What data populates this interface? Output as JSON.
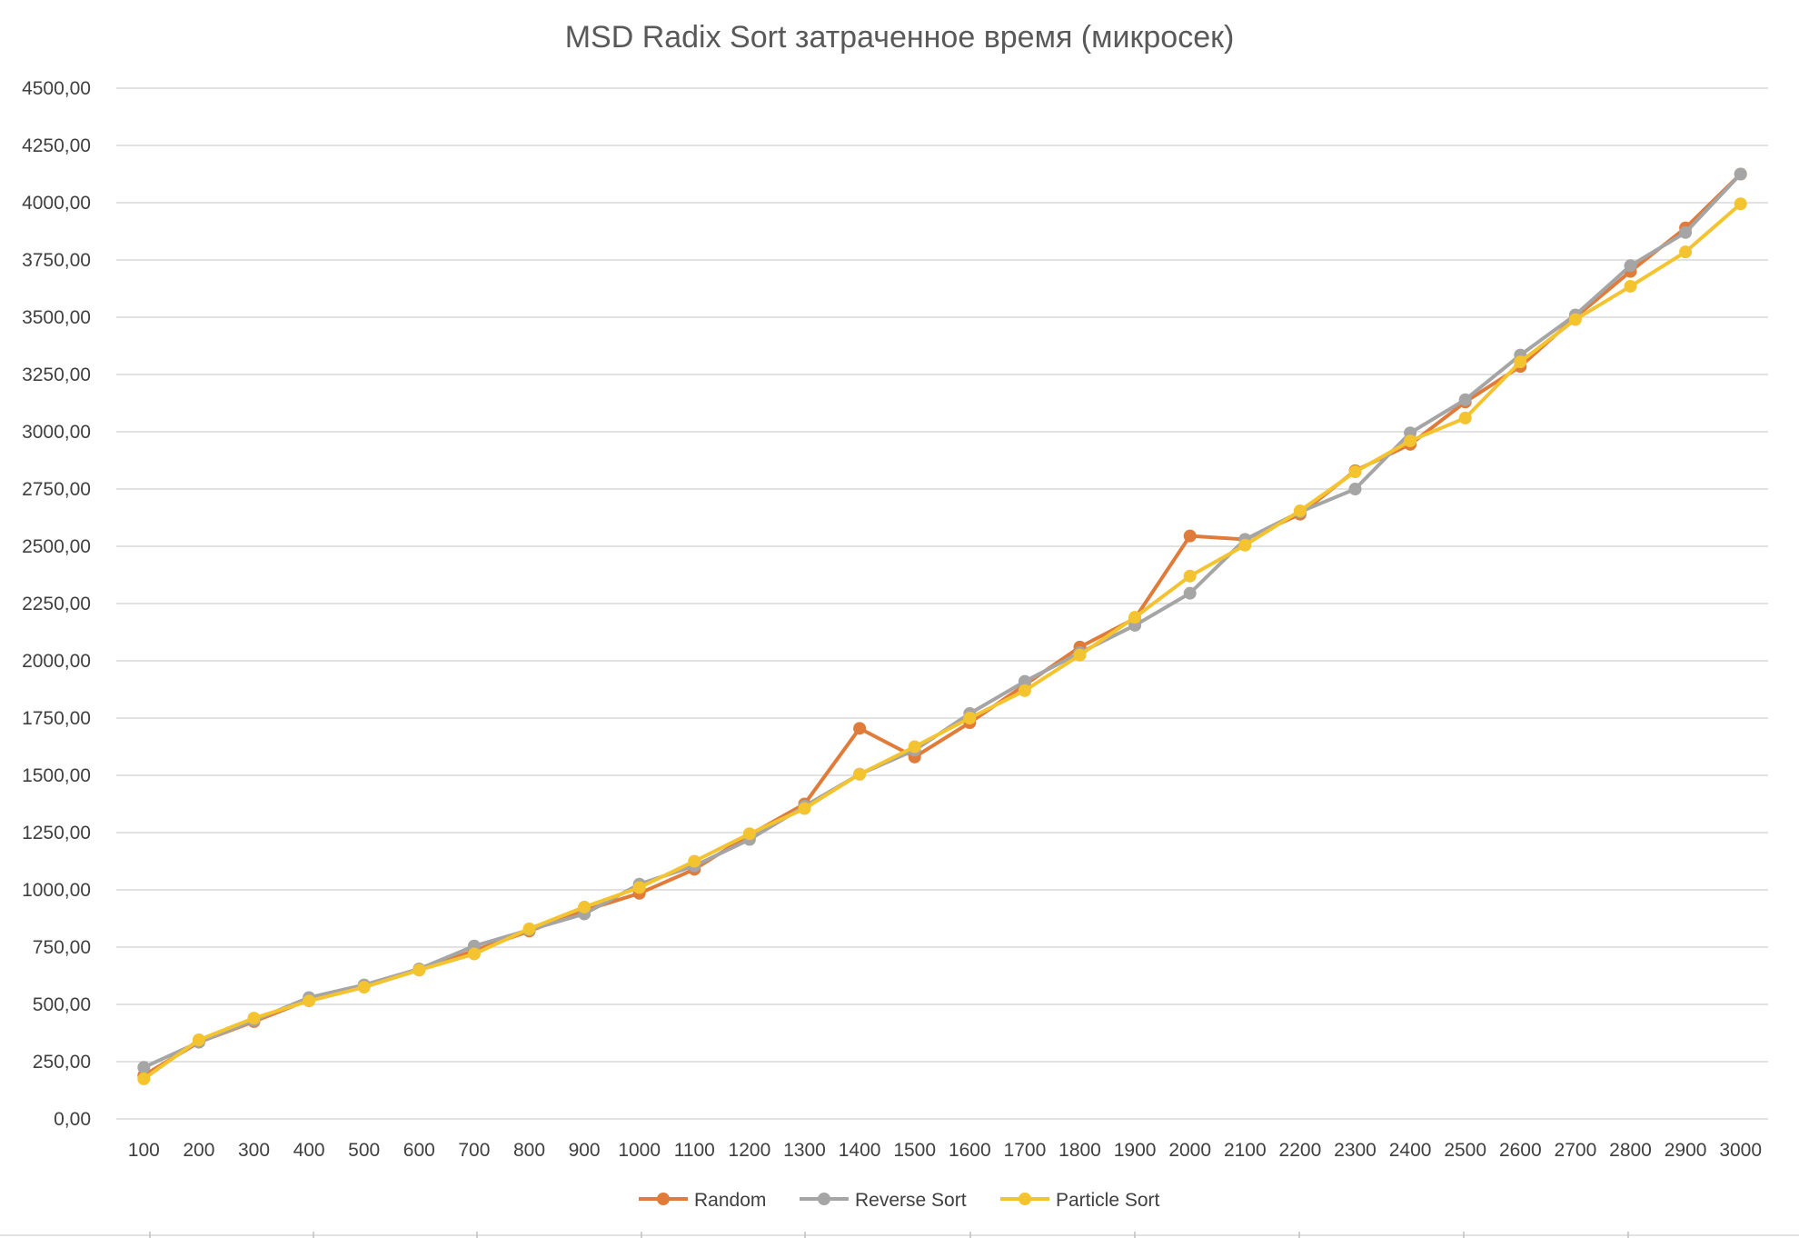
{
  "chart_data": {
    "type": "line",
    "title": "MSD Radix Sort затраченное время (микросек)",
    "xlabel": "",
    "ylabel": "",
    "categories": [
      "100",
      "200",
      "300",
      "400",
      "500",
      "600",
      "700",
      "800",
      "900",
      "1000",
      "1100",
      "1200",
      "1300",
      "1400",
      "1500",
      "1600",
      "1700",
      "1800",
      "1900",
      "2000",
      "2100",
      "2200",
      "2300",
      "2400",
      "2500",
      "2600",
      "2700",
      "2800",
      "2900",
      "3000"
    ],
    "y_ticks": [
      "0,00",
      "250,00",
      "500,00",
      "750,00",
      "1000,00",
      "1250,00",
      "1500,00",
      "1750,00",
      "2000,00",
      "2250,00",
      "2500,00",
      "2750,00",
      "3000,00",
      "3250,00",
      "3500,00",
      "3750,00",
      "4000,00",
      "4250,00",
      "4500,00"
    ],
    "ylim": [
      0,
      4500
    ],
    "grid": true,
    "legend_position": "bottom",
    "series": [
      {
        "name": "Random",
        "color": "#E07B39",
        "values": [
          190,
          335,
          425,
          520,
          580,
          650,
          735,
          820,
          910,
          985,
          1090,
          1240,
          1375,
          1705,
          1580,
          1730,
          1895,
          2060,
          2185,
          2545,
          2530,
          2640,
          2830,
          2945,
          3130,
          3285,
          3500,
          3700,
          3890,
          4125
        ]
      },
      {
        "name": "Reverse Sort",
        "color": "#A5A5A5",
        "values": [
          225,
          335,
          430,
          530,
          585,
          655,
          755,
          825,
          895,
          1025,
          1105,
          1220,
          1365,
          1505,
          1610,
          1770,
          1910,
          2035,
          2155,
          2295,
          2530,
          2650,
          2750,
          2995,
          3140,
          3335,
          3510,
          3725,
          3870,
          4125
        ]
      },
      {
        "name": "Particle Sort",
        "color": "#F4C430",
        "values": [
          175,
          345,
          440,
          515,
          575,
          650,
          720,
          830,
          925,
          1010,
          1125,
          1245,
          1355,
          1505,
          1625,
          1750,
          1870,
          2025,
          2190,
          2370,
          2505,
          2655,
          2825,
          2960,
          3060,
          3305,
          3490,
          3635,
          3785,
          3995
        ]
      }
    ]
  }
}
